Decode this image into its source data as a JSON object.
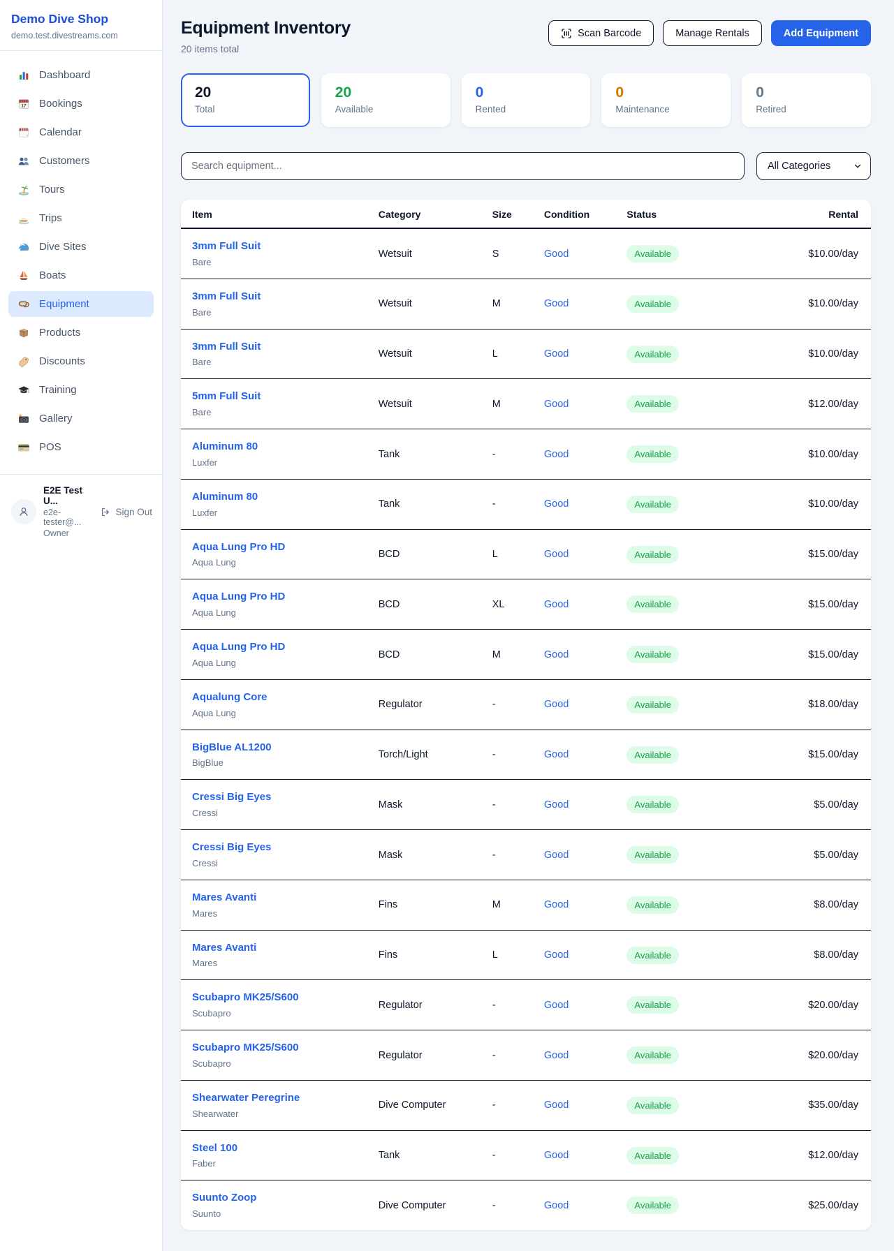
{
  "colors": {
    "accent": "#2563eb",
    "brand_text": "#1d4ed8",
    "success": "#16a34a",
    "warning": "#d97706",
    "muted": "#64748b",
    "badge_bg": "#dcfce7",
    "active_nav_bg": "#dbeafe"
  },
  "sidebar": {
    "brand": {
      "name": "Demo Dive Shop",
      "domain": "demo.test.divestreams.com"
    },
    "active_item": "Equipment",
    "items": [
      {
        "label": "Dashboard",
        "icon": "dashboard"
      },
      {
        "label": "Bookings",
        "icon": "bookings"
      },
      {
        "label": "Calendar",
        "icon": "calendar"
      },
      {
        "label": "Customers",
        "icon": "customers"
      },
      {
        "label": "Tours",
        "icon": "tours"
      },
      {
        "label": "Trips",
        "icon": "trips"
      },
      {
        "label": "Dive Sites",
        "icon": "dive-sites"
      },
      {
        "label": "Boats",
        "icon": "boats"
      },
      {
        "label": "Equipment",
        "icon": "equipment"
      },
      {
        "label": "Products",
        "icon": "products"
      },
      {
        "label": "Discounts",
        "icon": "discounts"
      },
      {
        "label": "Training",
        "icon": "training"
      },
      {
        "label": "Gallery",
        "icon": "gallery"
      },
      {
        "label": "POS",
        "icon": "pos"
      }
    ],
    "user": {
      "name": "E2E Test U...",
      "email": "e2e-tester@...",
      "role": "Owner",
      "sign_out_label": "Sign Out"
    }
  },
  "header": {
    "title": "Equipment Inventory",
    "subtitle": "20 items total",
    "buttons": {
      "scan_barcode": "Scan Barcode",
      "manage_rentals": "Manage Rentals",
      "add_equipment": "Add Equipment"
    }
  },
  "stats": [
    {
      "value": "20",
      "label": "Total",
      "color": "#0f172a",
      "selected": true
    },
    {
      "value": "20",
      "label": "Available",
      "color": "#16a34a",
      "selected": false
    },
    {
      "value": "0",
      "label": "Rented",
      "color": "#2563eb",
      "selected": false
    },
    {
      "value": "0",
      "label": "Maintenance",
      "color": "#d97706",
      "selected": false
    },
    {
      "value": "0",
      "label": "Retired",
      "color": "#64748b",
      "selected": false
    }
  ],
  "filters": {
    "search_placeholder": "Search equipment...",
    "category_selected": "All Categories"
  },
  "table": {
    "columns": [
      "Item",
      "Category",
      "Size",
      "Condition",
      "Status",
      "Rental"
    ],
    "rows": [
      {
        "name": "3mm Full Suit",
        "brand": "Bare",
        "category": "Wetsuit",
        "size": "S",
        "condition": "Good",
        "status": "Available",
        "rental": "$10.00/day"
      },
      {
        "name": "3mm Full Suit",
        "brand": "Bare",
        "category": "Wetsuit",
        "size": "M",
        "condition": "Good",
        "status": "Available",
        "rental": "$10.00/day"
      },
      {
        "name": "3mm Full Suit",
        "brand": "Bare",
        "category": "Wetsuit",
        "size": "L",
        "condition": "Good",
        "status": "Available",
        "rental": "$10.00/day"
      },
      {
        "name": "5mm Full Suit",
        "brand": "Bare",
        "category": "Wetsuit",
        "size": "M",
        "condition": "Good",
        "status": "Available",
        "rental": "$12.00/day"
      },
      {
        "name": "Aluminum 80",
        "brand": "Luxfer",
        "category": "Tank",
        "size": "-",
        "condition": "Good",
        "status": "Available",
        "rental": "$10.00/day"
      },
      {
        "name": "Aluminum 80",
        "brand": "Luxfer",
        "category": "Tank",
        "size": "-",
        "condition": "Good",
        "status": "Available",
        "rental": "$10.00/day"
      },
      {
        "name": "Aqua Lung Pro HD",
        "brand": "Aqua Lung",
        "category": "BCD",
        "size": "L",
        "condition": "Good",
        "status": "Available",
        "rental": "$15.00/day"
      },
      {
        "name": "Aqua Lung Pro HD",
        "brand": "Aqua Lung",
        "category": "BCD",
        "size": "XL",
        "condition": "Good",
        "status": "Available",
        "rental": "$15.00/day"
      },
      {
        "name": "Aqua Lung Pro HD",
        "brand": "Aqua Lung",
        "category": "BCD",
        "size": "M",
        "condition": "Good",
        "status": "Available",
        "rental": "$15.00/day"
      },
      {
        "name": "Aqualung Core",
        "brand": "Aqua Lung",
        "category": "Regulator",
        "size": "-",
        "condition": "Good",
        "status": "Available",
        "rental": "$18.00/day"
      },
      {
        "name": "BigBlue AL1200",
        "brand": "BigBlue",
        "category": "Torch/Light",
        "size": "-",
        "condition": "Good",
        "status": "Available",
        "rental": "$15.00/day"
      },
      {
        "name": "Cressi Big Eyes",
        "brand": "Cressi",
        "category": "Mask",
        "size": "-",
        "condition": "Good",
        "status": "Available",
        "rental": "$5.00/day"
      },
      {
        "name": "Cressi Big Eyes",
        "brand": "Cressi",
        "category": "Mask",
        "size": "-",
        "condition": "Good",
        "status": "Available",
        "rental": "$5.00/day"
      },
      {
        "name": "Mares Avanti",
        "brand": "Mares",
        "category": "Fins",
        "size": "M",
        "condition": "Good",
        "status": "Available",
        "rental": "$8.00/day"
      },
      {
        "name": "Mares Avanti",
        "brand": "Mares",
        "category": "Fins",
        "size": "L",
        "condition": "Good",
        "status": "Available",
        "rental": "$8.00/day"
      },
      {
        "name": "Scubapro MK25/S600",
        "brand": "Scubapro",
        "category": "Regulator",
        "size": "-",
        "condition": "Good",
        "status": "Available",
        "rental": "$20.00/day"
      },
      {
        "name": "Scubapro MK25/S600",
        "brand": "Scubapro",
        "category": "Regulator",
        "size": "-",
        "condition": "Good",
        "status": "Available",
        "rental": "$20.00/day"
      },
      {
        "name": "Shearwater Peregrine",
        "brand": "Shearwater",
        "category": "Dive Computer",
        "size": "-",
        "condition": "Good",
        "status": "Available",
        "rental": "$35.00/day"
      },
      {
        "name": "Steel 100",
        "brand": "Faber",
        "category": "Tank",
        "size": "-",
        "condition": "Good",
        "status": "Available",
        "rental": "$12.00/day"
      },
      {
        "name": "Suunto Zoop",
        "brand": "Suunto",
        "category": "Dive Computer",
        "size": "-",
        "condition": "Good",
        "status": "Available",
        "rental": "$25.00/day"
      }
    ]
  }
}
